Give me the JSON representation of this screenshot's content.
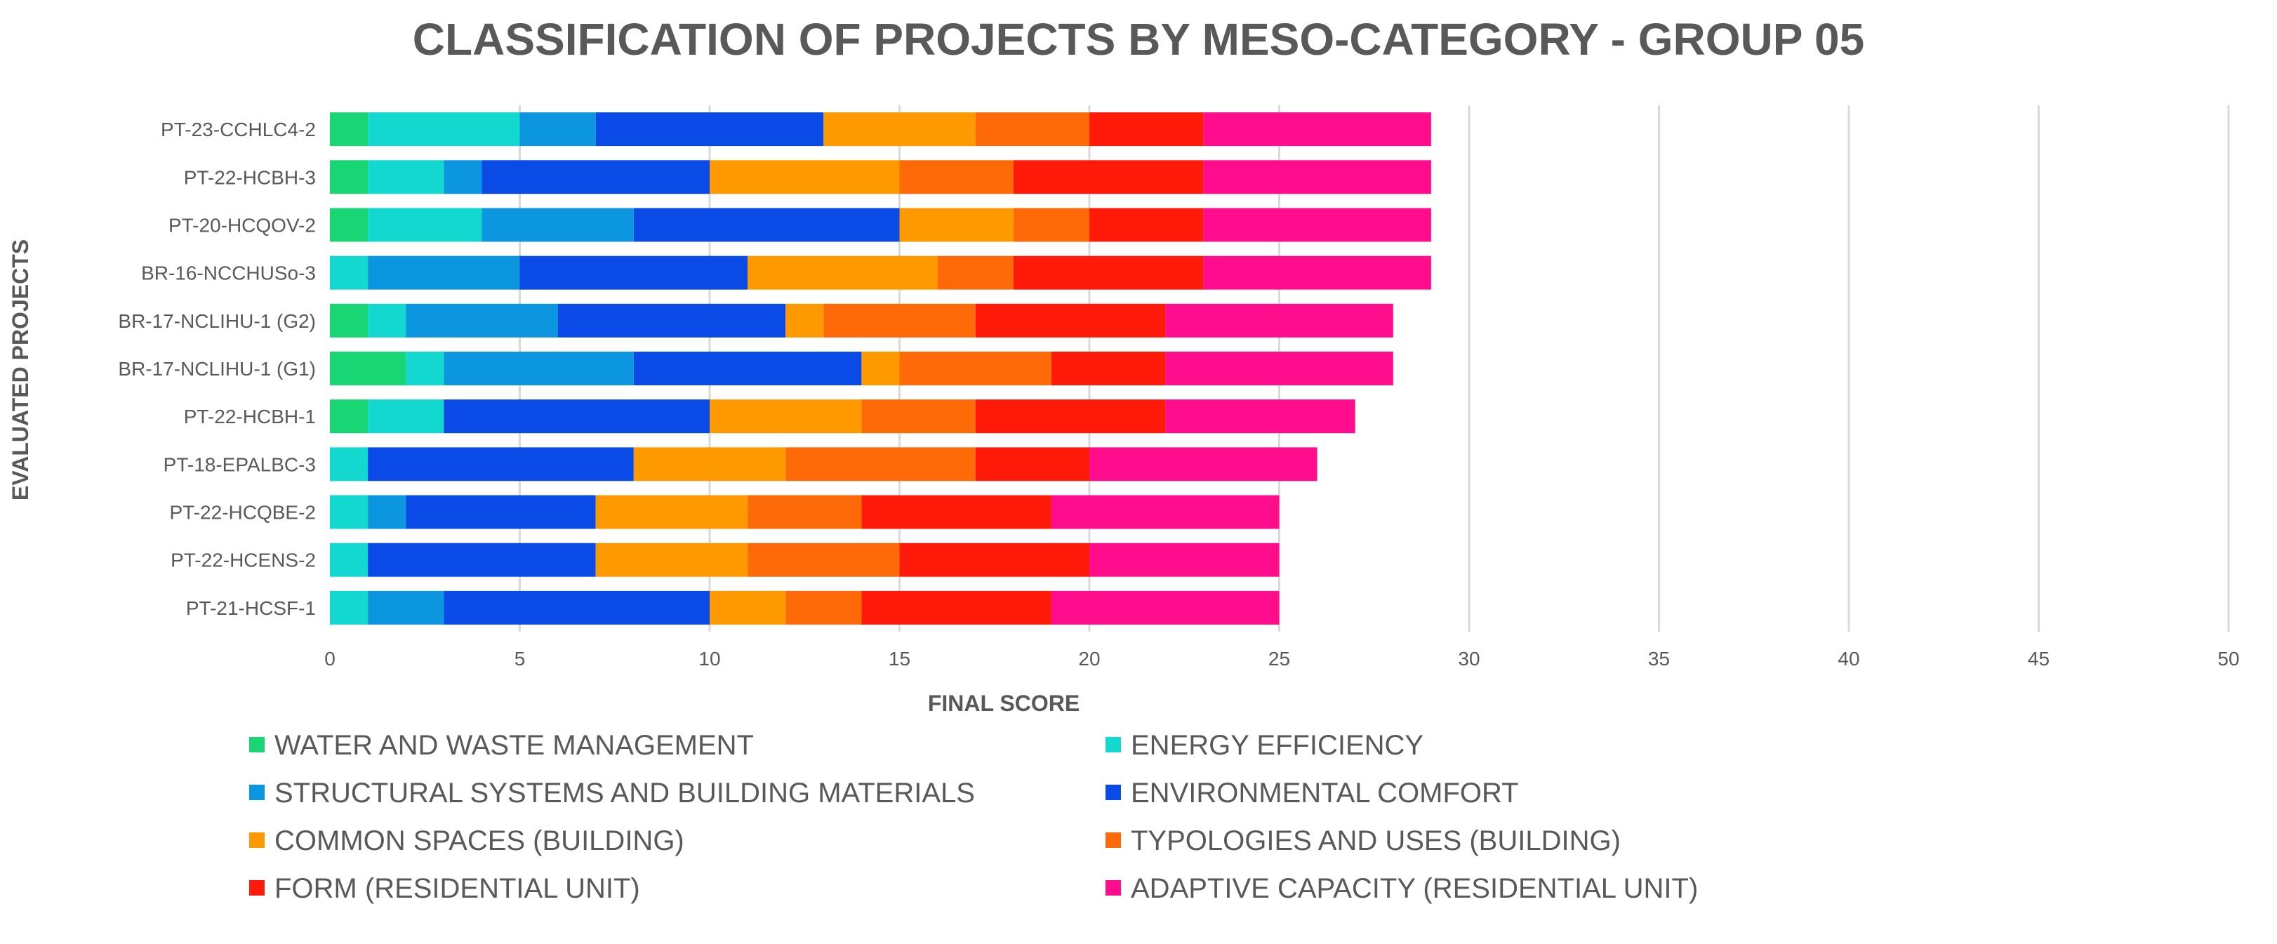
{
  "chart_data": {
    "type": "bar",
    "orientation": "horizontal",
    "stacked": true,
    "title": "CLASSIFICATION OF PROJECTS BY MESO-CATEGORY - GROUP 05",
    "xlabel": "FINAL SCORE",
    "ylabel": "EVALUATED PROJECTS",
    "xlim": [
      0,
      50
    ],
    "xticks": [
      0,
      5,
      10,
      15,
      20,
      25,
      30,
      35,
      40,
      45,
      50
    ],
    "grid": true,
    "legend_position": "bottom",
    "categories": [
      "PT-23-CCHLC4-2",
      "PT-22-HCBH-3",
      "PT-20-HCQOV-2",
      "BR-16-NCCHUSo-3",
      "BR-17-NCLIHU-1 (G2)",
      "BR-17-NCLIHU-1 (G1)",
      "PT-22-HCBH-1",
      "PT-18-EPALBC-3",
      "PT-22-HCQBE-2",
      "PT-22-HCENS-2",
      "PT-21-HCSF-1"
    ],
    "series": [
      {
        "name": "WATER AND WASTE MANAGEMENT",
        "color": "#1ad573",
        "values": [
          1,
          1,
          1,
          0,
          1,
          2,
          1,
          0,
          0,
          0,
          0
        ]
      },
      {
        "name": "ENERGY EFFICIENCY",
        "color": "#12d8cf",
        "values": [
          4,
          2,
          3,
          1,
          1,
          1,
          2,
          1,
          1,
          1,
          1
        ]
      },
      {
        "name": "STRUCTURAL SYSTEMS AND BUILDING MATERIALS",
        "color": "#0d96e0",
        "values": [
          2,
          1,
          4,
          4,
          4,
          5,
          0,
          0,
          1,
          0,
          2
        ]
      },
      {
        "name": "ENVIRONMENTAL COMFORT",
        "color": "#0a4be8",
        "values": [
          6,
          6,
          7,
          6,
          6,
          6,
          7,
          7,
          5,
          6,
          7
        ]
      },
      {
        "name": "COMMON SPACES (BUILDING)",
        "color": "#ff9900",
        "values": [
          4,
          5,
          3,
          5,
          1,
          1,
          4,
          4,
          4,
          4,
          2
        ]
      },
      {
        "name": "TYPOLOGIES AND USES (BUILDING)",
        "color": "#ff6a08",
        "values": [
          3,
          3,
          2,
          2,
          4,
          4,
          3,
          5,
          3,
          4,
          2
        ]
      },
      {
        "name": "FORM (RESIDENTIAL UNIT)",
        "color": "#ff1a0a",
        "values": [
          3,
          5,
          3,
          5,
          5,
          3,
          5,
          3,
          5,
          5,
          5
        ]
      },
      {
        "name": "ADAPTIVE CAPACITY (RESIDENTIAL UNIT)",
        "color": "#ff0d8c",
        "values": [
          6,
          6,
          6,
          6,
          6,
          6,
          5,
          6,
          6,
          5,
          6
        ]
      }
    ]
  }
}
